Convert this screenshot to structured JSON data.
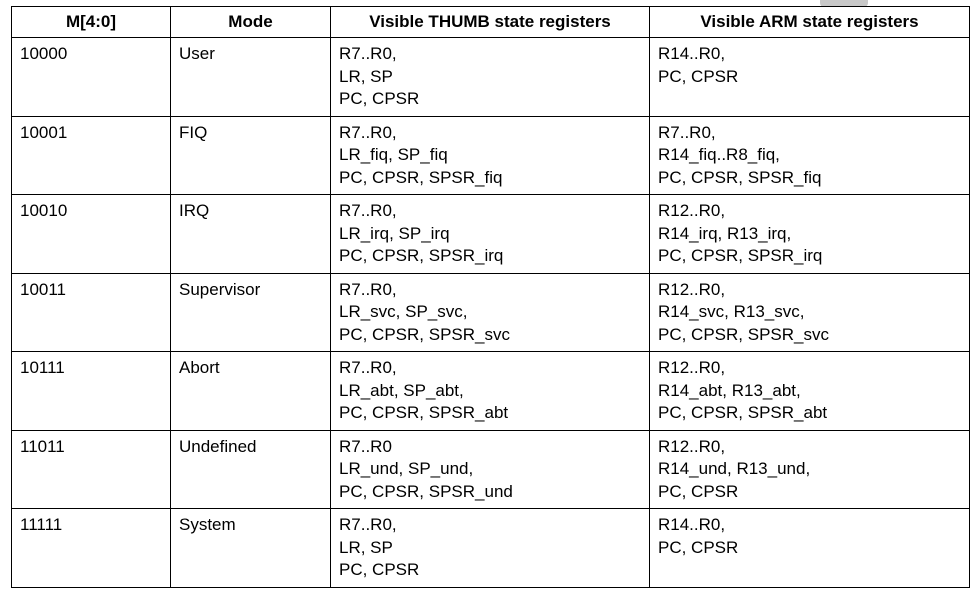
{
  "table": {
    "headers": [
      "M[4:0]",
      "Mode",
      "Visible THUMB state registers",
      "Visible ARM state registers"
    ],
    "rows": [
      {
        "m": "10000",
        "mode": "User",
        "thumb": [
          "R7..R0,",
          "LR, SP",
          "PC, CPSR"
        ],
        "arm": [
          "R14..R0,",
          "PC, CPSR"
        ]
      },
      {
        "m": "10001",
        "mode": "FIQ",
        "thumb": [
          "R7..R0,",
          "LR_fiq, SP_fiq",
          "PC, CPSR, SPSR_fiq"
        ],
        "arm": [
          "R7..R0,",
          "R14_fiq..R8_fiq,",
          "PC, CPSR, SPSR_fiq"
        ]
      },
      {
        "m": "10010",
        "mode": "IRQ",
        "thumb": [
          "R7..R0,",
          "LR_irq, SP_irq",
          "PC, CPSR, SPSR_irq"
        ],
        "arm": [
          "R12..R0,",
          "R14_irq, R13_irq,",
          "PC, CPSR, SPSR_irq"
        ]
      },
      {
        "m": "10011",
        "mode": "Supervisor",
        "thumb": [
          "R7..R0,",
          "LR_svc, SP_svc,",
          "PC, CPSR, SPSR_svc"
        ],
        "arm": [
          "R12..R0,",
          "R14_svc, R13_svc,",
          "PC, CPSR, SPSR_svc"
        ]
      },
      {
        "m": "10111",
        "mode": "Abort",
        "thumb": [
          "R7..R0,",
          "LR_abt, SP_abt,",
          "PC, CPSR, SPSR_abt"
        ],
        "arm": [
          "R12..R0,",
          "R14_abt, R13_abt,",
          "PC, CPSR, SPSR_abt"
        ]
      },
      {
        "m": "11011",
        "mode": "Undefined",
        "thumb": [
          "R7..R0",
          "LR_und, SP_und,",
          "PC, CPSR, SPSR_und"
        ],
        "arm": [
          "R12..R0,",
          "R14_und, R13_und,",
          "PC, CPSR"
        ]
      },
      {
        "m": "11111",
        "mode": "System",
        "thumb": [
          "R7..R0,",
          "LR, SP",
          "PC, CPSR"
        ],
        "arm": [
          "R14..R0,",
          "PC, CPSR"
        ]
      }
    ]
  }
}
